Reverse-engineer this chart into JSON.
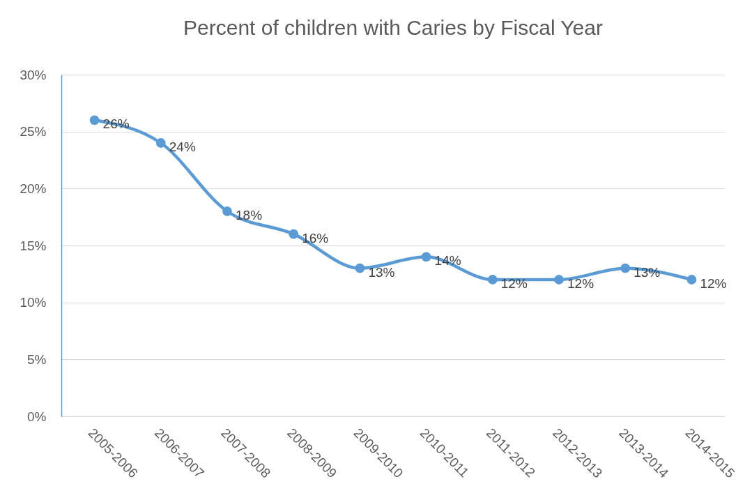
{
  "chart_data": {
    "type": "line",
    "title": "Percent of children with Caries by Fiscal Year",
    "categories": [
      "2005-2006",
      "2006-2007",
      "2007-2008",
      "2008-2009",
      "2009-2010",
      "2010-2011",
      "2011-2012",
      "2012-2013",
      "2013-2014",
      "2014-2015"
    ],
    "series": [
      {
        "color": "#5b9bd5",
        "values": [
          26,
          24,
          18,
          16,
          13,
          14,
          12,
          12,
          13,
          12
        ],
        "value_labels": [
          "26%",
          "24%",
          "18%",
          "16%",
          "13%",
          "14%",
          "12%",
          "12%",
          "13%",
          "12%"
        ]
      }
    ],
    "ylim": [
      0,
      30
    ],
    "yticks": [
      {
        "value": 0,
        "label": "0%"
      },
      {
        "value": 5,
        "label": "5%"
      },
      {
        "value": 10,
        "label": "10%"
      },
      {
        "value": 15,
        "label": "15%"
      },
      {
        "value": 20,
        "label": "20%"
      },
      {
        "value": 25,
        "label": "25%"
      },
      {
        "value": 30,
        "label": "30%"
      }
    ],
    "grid": "y",
    "marker": "circle",
    "line_style": "solid"
  }
}
